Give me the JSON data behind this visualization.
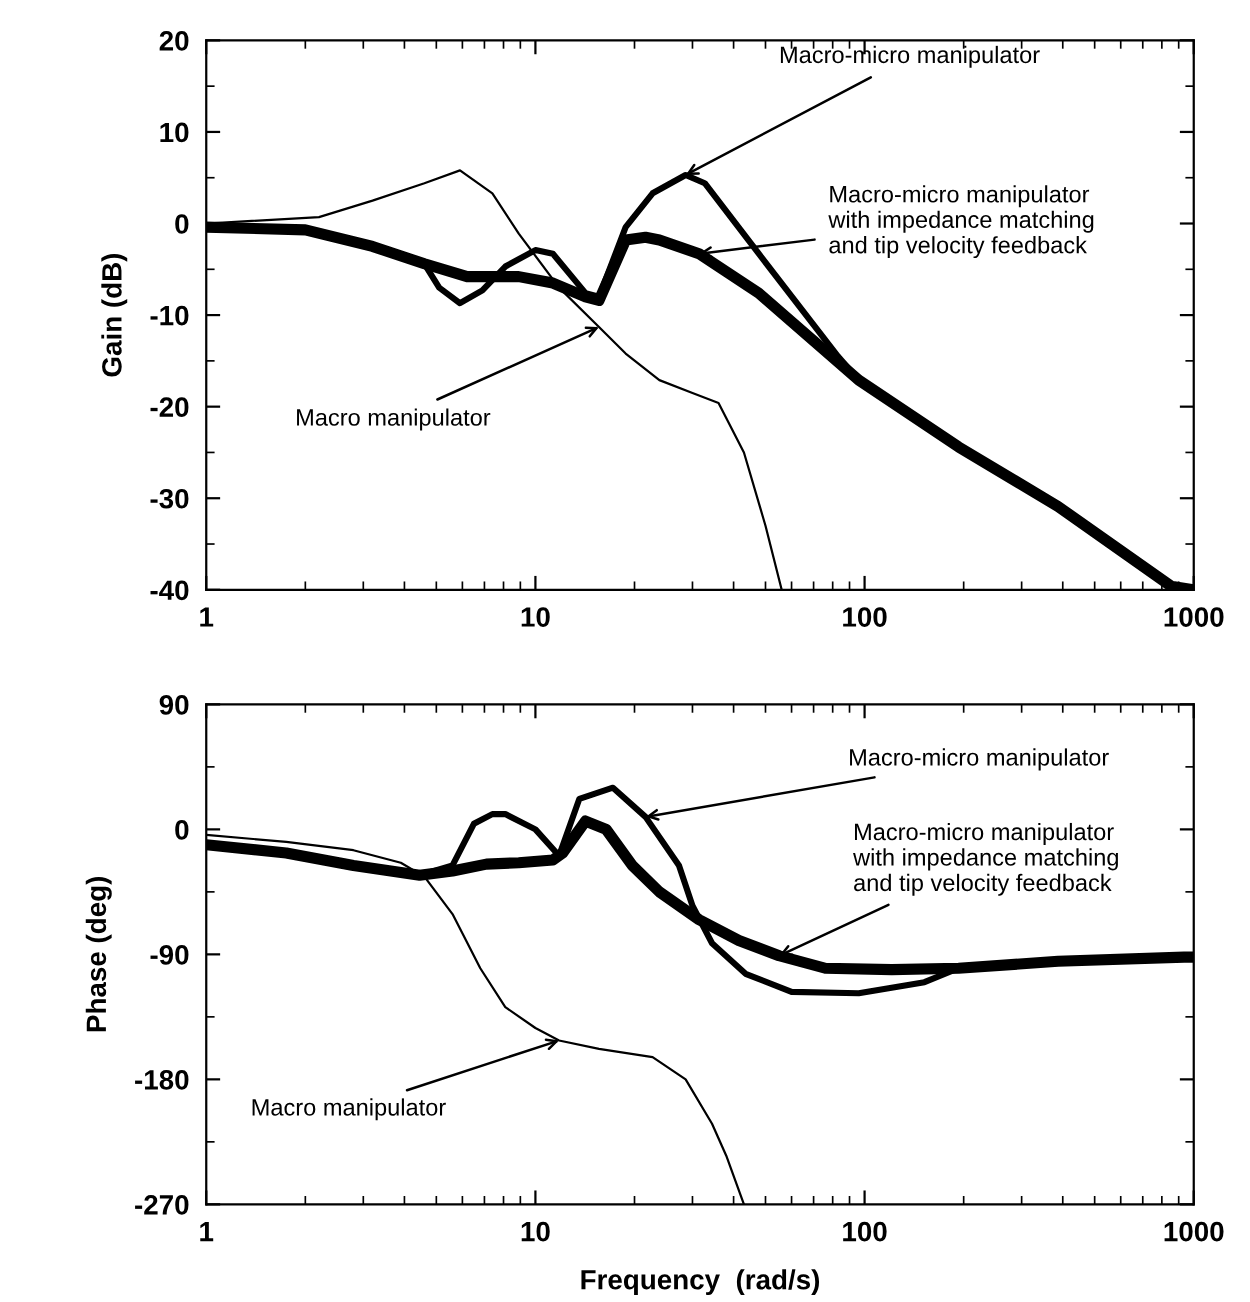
{
  "chart_data": [
    {
      "type": "line",
      "ylabel": "Gain (dB)",
      "log": "x",
      "xlim": [
        1,
        1000
      ],
      "xticks": [
        1,
        10,
        100,
        1000
      ],
      "ylim": [
        -40,
        20
      ],
      "yticks": [
        -40,
        -30,
        -20,
        -10,
        0,
        10,
        20
      ],
      "series": [
        {
          "color": "#000000",
          "x": [
            1,
            2.2,
            3.2,
            4.6,
            5.9,
            7.4,
            8.9,
            11.8,
            15.6,
            18.8,
            23.8,
            30,
            36,
            43,
            50,
            56
          ],
          "values": [
            0,
            0.7,
            2.5,
            4.4,
            5.8,
            3.3,
            -1.1,
            -7,
            -11.3,
            -14.2,
            -17.1,
            -18.5,
            -19.6,
            -25,
            -33,
            -40
          ]
        },
        {
          "color": "#000000",
          "x": [
            1,
            2.0,
            3.2,
            4.6,
            5.1,
            5.9,
            6.9,
            8.1,
            10,
            11.3,
            14.2,
            15.6,
            18.8,
            22.7,
            28.6,
            32.7,
            47.7,
            83,
            96,
            193,
            387,
            853,
            1000
          ],
          "values": [
            -0.4,
            -0.7,
            -2.5,
            -4.4,
            -7,
            -8.7,
            -7.3,
            -4.7,
            -2.9,
            -3.3,
            -7.6,
            -8,
            -0.4,
            3.3,
            5.3,
            4.4,
            -3.3,
            -14.5,
            -17.1,
            -24.4,
            -30.9,
            -39.6,
            -40
          ]
        },
        {
          "color": "#000000",
          "x": [
            1,
            2.0,
            3.2,
            4.6,
            6.2,
            8.9,
            11.3,
            14.2,
            15.6,
            18.8,
            21.6,
            23.8,
            31.4,
            47.7,
            96,
            193,
            387,
            853,
            1000
          ],
          "values": [
            -0.4,
            -0.7,
            -2.5,
            -4.4,
            -5.8,
            -5.8,
            -6.5,
            -8,
            -8.4,
            -1.8,
            -1.5,
            -1.8,
            -3.3,
            -7.6,
            -17.1,
            -24.4,
            -30.9,
            -39.6,
            -40
          ]
        }
      ],
      "annotations": [
        {
          "text": "Macro manipulator",
          "x": 15.6,
          "y": -11.3
        },
        {
          "text": "Macro-micro manipulator",
          "x": 28.6,
          "y": 5.3
        },
        {
          "text": "Macro-micro manipulator\nwith impedance matching\nand tip velocity feedback",
          "x": 31.4,
          "y": -3.3
        }
      ]
    },
    {
      "type": "line",
      "ylabel": "Phase (deg)",
      "xlabel": "Frequency  (rad/s)",
      "log": "x",
      "xlim": [
        1,
        1000
      ],
      "xticks": [
        1,
        10,
        100,
        1000
      ],
      "ylim": [
        -270,
        90
      ],
      "yticks": [
        -270,
        -180,
        -90,
        0,
        90
      ],
      "series": [
        {
          "color": "#000000",
          "x": [
            1,
            1.75,
            2.8,
            3.9,
            4.6,
            5.6,
            6.8,
            8.1,
            10,
            11.8,
            15.6,
            22.7,
            28.6,
            34.4,
            38,
            43
          ],
          "values": [
            -4,
            -9,
            -15,
            -24,
            -34,
            -61,
            -100,
            -128,
            -143,
            -152,
            -158,
            -164,
            -180,
            -212,
            -235,
            -270
          ]
        },
        {
          "color": "#000000",
          "x": [
            1,
            1.75,
            2.8,
            4.45,
            5.6,
            6.5,
            7.4,
            8.1,
            10,
            11.8,
            13.6,
            17.2,
            21.6,
            27.3,
            30,
            34.4,
            43.5,
            60,
            96,
            152,
            193,
            387,
            935,
            1000
          ],
          "values": [
            -11,
            -17,
            -26,
            -33,
            -26,
            4,
            11,
            11,
            0,
            -19,
            22,
            30,
            9,
            -26,
            -55,
            -82,
            -104,
            -117,
            -118,
            -110,
            -100,
            -95,
            -92,
            -92
          ]
        },
        {
          "color": "#000000",
          "x": [
            1,
            1.75,
            2.8,
            4.45,
            5.6,
            7.1,
            8.9,
            11.3,
            12.1,
            14.2,
            16.4,
            19.7,
            23.8,
            31.4,
            41.5,
            55,
            76,
            121,
            193,
            387,
            935,
            1000
          ],
          "values": [
            -11,
            -17,
            -26,
            -33,
            -30,
            -25,
            -24,
            -22,
            -17,
            6,
            0,
            -26,
            -45,
            -65,
            -80,
            -91,
            -100,
            -101,
            -100,
            -95,
            -92,
            -92
          ]
        }
      ],
      "annotations": [
        {
          "text": "Macro manipulator",
          "x": 11.8,
          "y": -152
        },
        {
          "text": "Macro-micro manipulator",
          "x": 21.6,
          "y": 9
        },
        {
          "text": "Macro-micro manipulator\nwith impedance matching\nand tip velocity feedback",
          "x": 55,
          "y": -91
        }
      ]
    }
  ]
}
